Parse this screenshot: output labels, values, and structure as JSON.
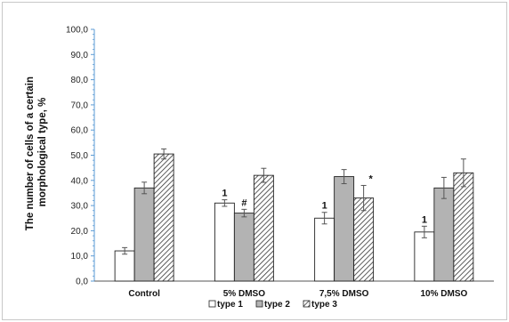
{
  "chart_data": {
    "type": "bar",
    "ylabel_line1": "The number of cells of a certain",
    "ylabel_line2": "morphological type, %",
    "ylim": [
      0,
      100
    ],
    "ytick_labels": [
      "0,0",
      "10,0",
      "20,0",
      "30,0",
      "40,0",
      "50,0",
      "60,0",
      "70,0",
      "80,0",
      "90,0",
      "100,0"
    ],
    "categories": [
      "Control",
      "5% DMSO",
      "7,5% DMSO",
      "10% DMSO"
    ],
    "series": [
      {
        "name": "type 1",
        "values": [
          12.0,
          31.0,
          25.0,
          19.5
        ],
        "errors": [
          1.3,
          1.3,
          2.3,
          2.3
        ]
      },
      {
        "name": "type 2",
        "values": [
          37.0,
          27.0,
          41.5,
          37.0
        ],
        "errors": [
          2.3,
          1.5,
          2.8,
          4.2
        ]
      },
      {
        "name": "type 3",
        "values": [
          50.5,
          42.0,
          33.0,
          43.0
        ],
        "errors": [
          2.0,
          2.8,
          5.0,
          5.5
        ]
      }
    ],
    "annotations": [
      {
        "category": "5% DMSO",
        "series": "type 1",
        "text": "1"
      },
      {
        "category": "5% DMSO",
        "series": "type 2",
        "text": "#"
      },
      {
        "category": "7,5% DMSO",
        "series": "type 1",
        "text": "1"
      },
      {
        "category": "7,5% DMSO",
        "series": "type 3",
        "text": "*"
      },
      {
        "category": "10% DMSO",
        "series": "type 1",
        "text": "1"
      }
    ],
    "legend_position": "bottom",
    "grid": false,
    "colors": {
      "type1": "#ffffff",
      "type2": "#b3b3b3",
      "type3": "hatched",
      "axis": "#5b9bd5"
    }
  }
}
